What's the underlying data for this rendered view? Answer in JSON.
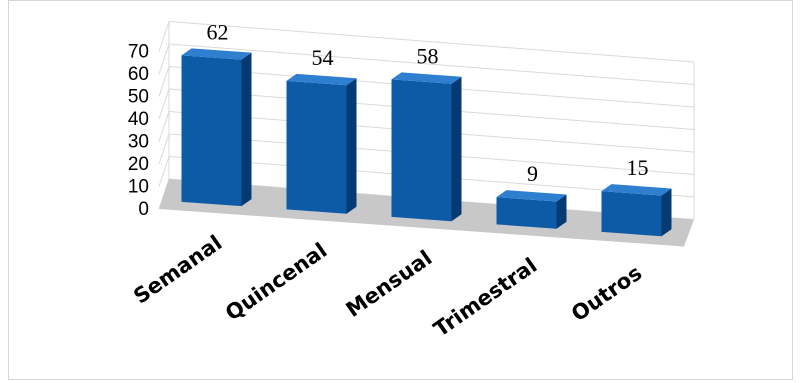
{
  "chart_data": {
    "type": "bar",
    "style": "3d-column",
    "categories": [
      "Semanal",
      "Quincenal",
      "Mensual",
      "Trimestral",
      "Outros"
    ],
    "values": [
      62,
      54,
      58,
      9,
      15
    ],
    "data_labels": [
      "62",
      "54",
      "58",
      "9",
      "15"
    ],
    "ylim": [
      0,
      70
    ],
    "yticks": [
      "0",
      "10",
      "20",
      "30",
      "40",
      "50",
      "60",
      "70"
    ],
    "grid": true,
    "legend": "none",
    "colors": {
      "bar_front": "#0d5aa6",
      "bar_side": "#063a73",
      "bar_top": "#2f7fd0",
      "floor": "#c8c8c8",
      "grid": "#d9d9d9"
    }
  }
}
